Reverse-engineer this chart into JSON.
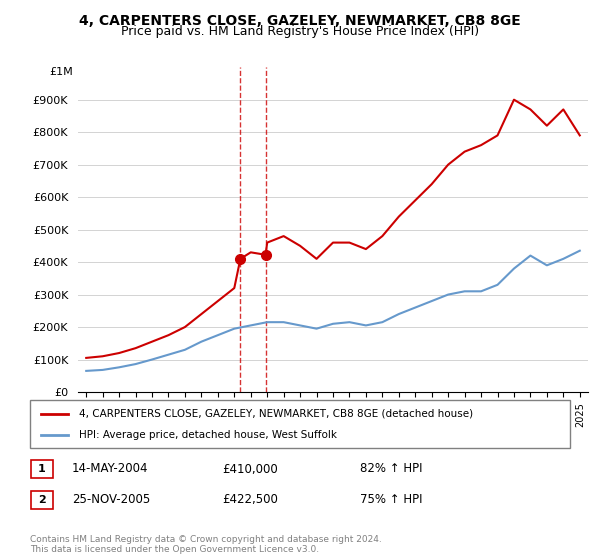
{
  "title1": "4, CARPENTERS CLOSE, GAZELEY, NEWMARKET, CB8 8GE",
  "title2": "Price paid vs. HM Land Registry's House Price Index (HPI)",
  "legend1": "4, CARPENTERS CLOSE, GAZELEY, NEWMARKET, CB8 8GE (detached house)",
  "legend2": "HPI: Average price, detached house, West Suffolk",
  "footer": "Contains HM Land Registry data © Crown copyright and database right 2024.\nThis data is licensed under the Open Government Licence v3.0.",
  "transactions": [
    {
      "num": "1",
      "date": "14-MAY-2004",
      "price": "£410,000",
      "hpi": "82% ↑ HPI"
    },
    {
      "num": "2",
      "date": "25-NOV-2005",
      "price": "£422,500",
      "hpi": "75% ↑ HPI"
    }
  ],
  "sale_years": [
    2004.37,
    2005.9
  ],
  "sale_prices_red": [
    410000,
    422500
  ],
  "vline_color": "#cc0000",
  "red_color": "#cc0000",
  "blue_color": "#6699cc",
  "sale_marker_color": "#cc0000",
  "ylim": [
    0,
    1000000
  ],
  "xlim_start": 1995,
  "xlim_end": 2025.5,
  "hpi_years": [
    1995,
    1996,
    1997,
    1998,
    1999,
    2000,
    2001,
    2002,
    2003,
    2004,
    2005,
    2006,
    2007,
    2008,
    2009,
    2010,
    2011,
    2012,
    2013,
    2014,
    2015,
    2016,
    2017,
    2018,
    2019,
    2020,
    2021,
    2022,
    2023,
    2024,
    2025
  ],
  "hpi_values": [
    65000,
    68000,
    76000,
    86000,
    100000,
    115000,
    130000,
    155000,
    175000,
    195000,
    205000,
    215000,
    215000,
    205000,
    195000,
    210000,
    215000,
    205000,
    215000,
    240000,
    260000,
    280000,
    300000,
    310000,
    310000,
    330000,
    380000,
    420000,
    390000,
    410000,
    435000
  ],
  "red_years": [
    1995,
    1996,
    1997,
    1998,
    1999,
    2000,
    2001,
    2002,
    2003,
    2004,
    2004.37,
    2005,
    2005.9,
    2006,
    2007,
    2008,
    2009,
    2010,
    2011,
    2012,
    2013,
    2014,
    2015,
    2016,
    2017,
    2018,
    2019,
    2020,
    2021,
    2022,
    2023,
    2024,
    2025
  ],
  "red_values": [
    105000,
    110000,
    120000,
    135000,
    155000,
    175000,
    200000,
    240000,
    280000,
    320000,
    410000,
    430000,
    422500,
    460000,
    480000,
    450000,
    410000,
    460000,
    460000,
    440000,
    480000,
    540000,
    590000,
    640000,
    700000,
    740000,
    760000,
    790000,
    900000,
    870000,
    820000,
    870000,
    790000
  ]
}
